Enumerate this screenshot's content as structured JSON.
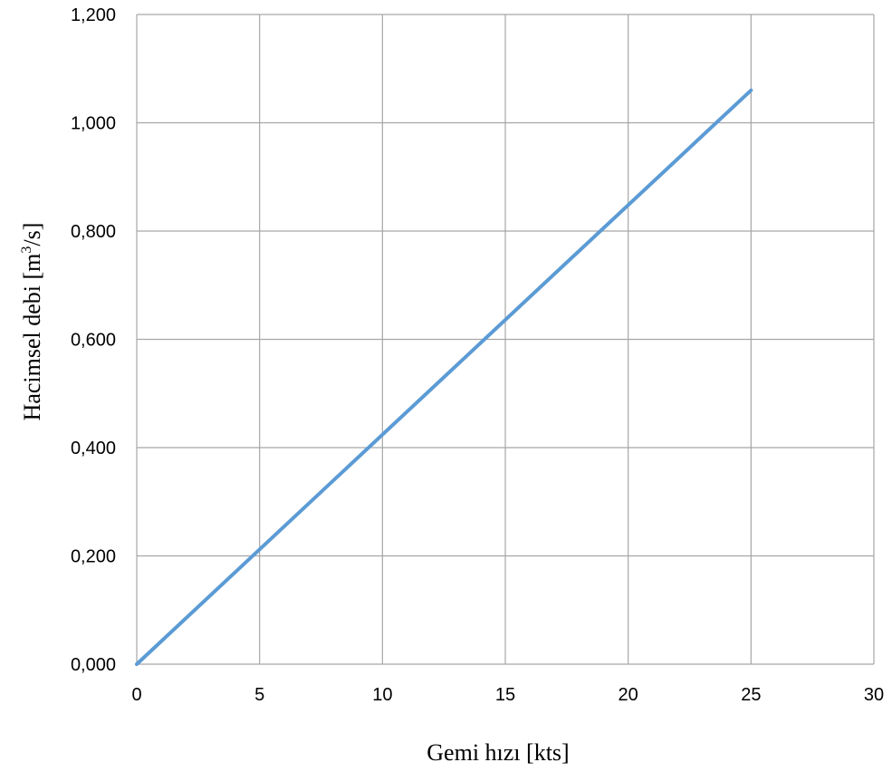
{
  "chart_data": {
    "type": "line",
    "title": "",
    "xlabel": "Gemi hızı [kts]",
    "ylabel_main": "Hacimsel debi [m",
    "ylabel_sup": "3",
    "ylabel_end": "/s]",
    "xlim": [
      0,
      30
    ],
    "ylim": [
      0,
      1.2
    ],
    "x_ticks": [
      0,
      5,
      10,
      15,
      20,
      25,
      30
    ],
    "x_tick_labels": [
      "0",
      "5",
      "10",
      "15",
      "20",
      "25",
      "30"
    ],
    "y_ticks": [
      0,
      0.2,
      0.4,
      0.6,
      0.8,
      1.0,
      1.2
    ],
    "y_tick_labels": [
      "0,000",
      "0,200",
      "0,400",
      "0,600",
      "0,800",
      "1,000",
      "1,200"
    ],
    "grid": true,
    "series": [
      {
        "color": "#5b9bd5",
        "x": [
          0,
          25
        ],
        "y": [
          0,
          1.06
        ]
      }
    ]
  }
}
